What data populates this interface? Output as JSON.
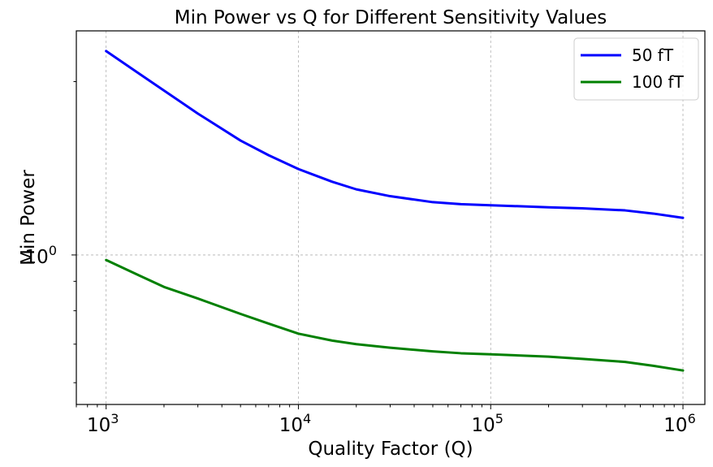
{
  "chart_data": {
    "type": "line",
    "title": "Min Power vs Q for Different Sensitivity Values",
    "xlabel": "Quality Factor (Q)",
    "ylabel": "Min Power",
    "xscale": "log",
    "yscale": "log",
    "xlim": [
      700,
      1300000
    ],
    "ylim": [
      0.55,
      2.45
    ],
    "x_ticks": [
      {
        "base": "10",
        "exp": "3",
        "value": 1000
      },
      {
        "base": "10",
        "exp": "4",
        "value": 10000
      },
      {
        "base": "10",
        "exp": "5",
        "value": 100000
      },
      {
        "base": "10",
        "exp": "6",
        "value": 1000000
      }
    ],
    "y_ticks": [
      {
        "base": "10",
        "exp": "0",
        "value": 1
      }
    ],
    "grid": true,
    "legend_position": "top-right",
    "series": [
      {
        "name": "50 fT",
        "color": "#0000ff",
        "x": [
          1000,
          1500,
          2000,
          3000,
          5000,
          7000,
          10000,
          15000,
          20000,
          30000,
          50000,
          70000,
          100000,
          200000,
          300000,
          500000,
          700000,
          1000000
        ],
        "y": [
          2.26,
          2.06,
          1.93,
          1.76,
          1.58,
          1.49,
          1.41,
          1.34,
          1.3,
          1.265,
          1.235,
          1.225,
          1.22,
          1.21,
          1.205,
          1.195,
          1.18,
          1.16
        ]
      },
      {
        "name": "100 fT",
        "color": "#008000",
        "x": [
          1000,
          1500,
          2000,
          3000,
          5000,
          7000,
          10000,
          15000,
          20000,
          30000,
          50000,
          70000,
          100000,
          200000,
          300000,
          500000,
          700000,
          1000000
        ],
        "y": [
          0.98,
          0.92,
          0.88,
          0.84,
          0.79,
          0.76,
          0.73,
          0.71,
          0.7,
          0.69,
          0.68,
          0.675,
          0.672,
          0.666,
          0.66,
          0.652,
          0.642,
          0.63
        ]
      }
    ]
  }
}
